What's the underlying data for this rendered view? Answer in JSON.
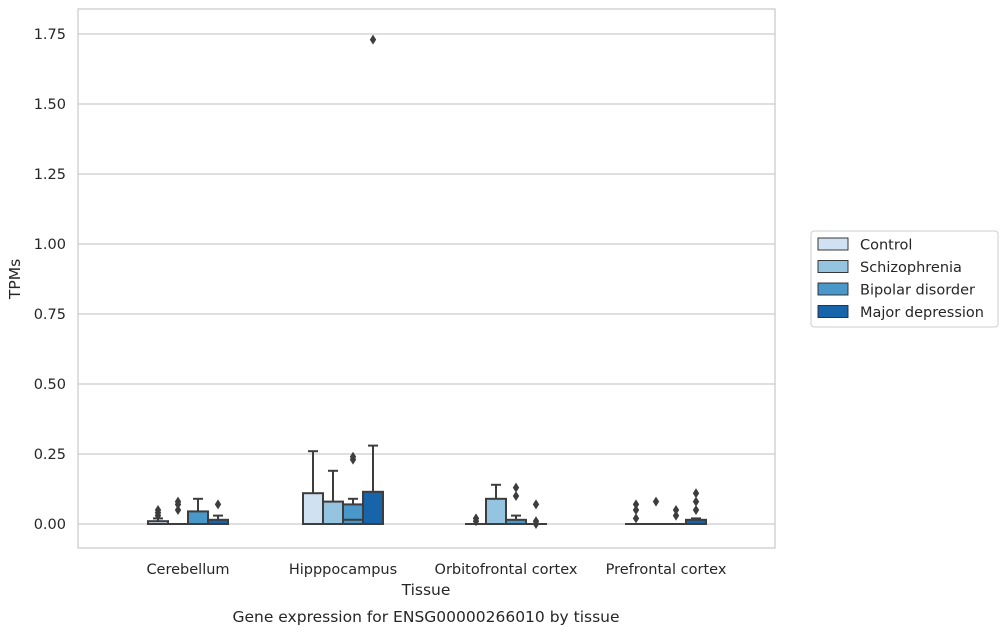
{
  "chart_data": {
    "type": "box",
    "title": "",
    "caption": "Gene expression for ENSG00000266010 by tissue",
    "xlabel": "Tissue",
    "ylabel": "TPMs",
    "ylim": [
      -0.085,
      1.82
    ],
    "yticks": [
      "0.00",
      "0.25",
      "0.50",
      "0.75",
      "1.00",
      "1.25",
      "1.50",
      "1.75"
    ],
    "grid": "horizontal",
    "legend_position": "right",
    "categories": [
      "Cerebellum",
      "Hipppocampus",
      "Orbitofrontal cortex",
      "Prefrontal cortex"
    ],
    "series": [
      {
        "name": "Control",
        "color": "#d0e1f2",
        "boxes": [
          {
            "q1": 0.0,
            "median": 0.0,
            "q3": 0.01,
            "whisker_low": 0.0,
            "whisker_high": 0.02,
            "outliers": [
              0.03,
              0.04,
              0.05
            ]
          },
          {
            "q1": 0.0,
            "median": 0.0,
            "q3": 0.11,
            "whisker_low": 0.0,
            "whisker_high": 0.26,
            "outliers": []
          },
          {
            "q1": 0.0,
            "median": 0.0,
            "q3": 0.0,
            "whisker_low": 0.0,
            "whisker_high": 0.0,
            "outliers": [
              0.01,
              0.02
            ]
          },
          {
            "q1": 0.0,
            "median": 0.0,
            "q3": 0.0,
            "whisker_low": 0.0,
            "whisker_high": 0.0,
            "outliers": [
              0.02,
              0.05,
              0.07
            ]
          }
        ]
      },
      {
        "name": "Schizophrenia",
        "color": "#94c4df",
        "boxes": [
          {
            "q1": 0.0,
            "median": 0.0,
            "q3": 0.0,
            "whisker_low": 0.0,
            "whisker_high": 0.0,
            "outliers": [
              0.05,
              0.07,
              0.08
            ]
          },
          {
            "q1": 0.0,
            "median": 0.0,
            "q3": 0.08,
            "whisker_low": 0.0,
            "whisker_high": 0.19,
            "outliers": []
          },
          {
            "q1": 0.0,
            "median": 0.0,
            "q3": 0.09,
            "whisker_low": 0.0,
            "whisker_high": 0.14,
            "outliers": []
          },
          {
            "q1": 0.0,
            "median": 0.0,
            "q3": 0.0,
            "whisker_low": 0.0,
            "whisker_high": 0.0,
            "outliers": [
              0.08
            ]
          }
        ]
      },
      {
        "name": "Bipolar disorder",
        "color": "#4a98c9",
        "boxes": [
          {
            "q1": 0.0,
            "median": 0.0,
            "q3": 0.045,
            "whisker_low": 0.0,
            "whisker_high": 0.09,
            "outliers": []
          },
          {
            "q1": 0.0,
            "median": 0.015,
            "q3": 0.07,
            "whisker_low": 0.0,
            "whisker_high": 0.09,
            "outliers": [
              0.23,
              0.24
            ]
          },
          {
            "q1": 0.0,
            "median": 0.0,
            "q3": 0.015,
            "whisker_low": 0.0,
            "whisker_high": 0.03,
            "outliers": [
              0.1,
              0.13
            ]
          },
          {
            "q1": 0.0,
            "median": 0.0,
            "q3": 0.0,
            "whisker_low": 0.0,
            "whisker_high": 0.0,
            "outliers": [
              0.03,
              0.05
            ]
          }
        ]
      },
      {
        "name": "Major depression",
        "color": "#1764ab",
        "boxes": [
          {
            "q1": 0.0,
            "median": 0.0,
            "q3": 0.015,
            "whisker_low": 0.0,
            "whisker_high": 0.03,
            "outliers": [
              0.07
            ]
          },
          {
            "q1": 0.0,
            "median": 0.0,
            "q3": 0.115,
            "whisker_low": 0.0,
            "whisker_high": 0.28,
            "outliers": [
              1.73
            ]
          },
          {
            "q1": 0.0,
            "median": 0.0,
            "q3": 0.0,
            "whisker_low": 0.0,
            "whisker_high": 0.0,
            "outliers": [
              0.0,
              0.01,
              0.07
            ]
          },
          {
            "q1": 0.0,
            "median": 0.0,
            "q3": 0.015,
            "whisker_low": 0.0,
            "whisker_high": 0.02,
            "outliers": [
              0.05,
              0.08,
              0.11
            ]
          }
        ]
      }
    ]
  }
}
